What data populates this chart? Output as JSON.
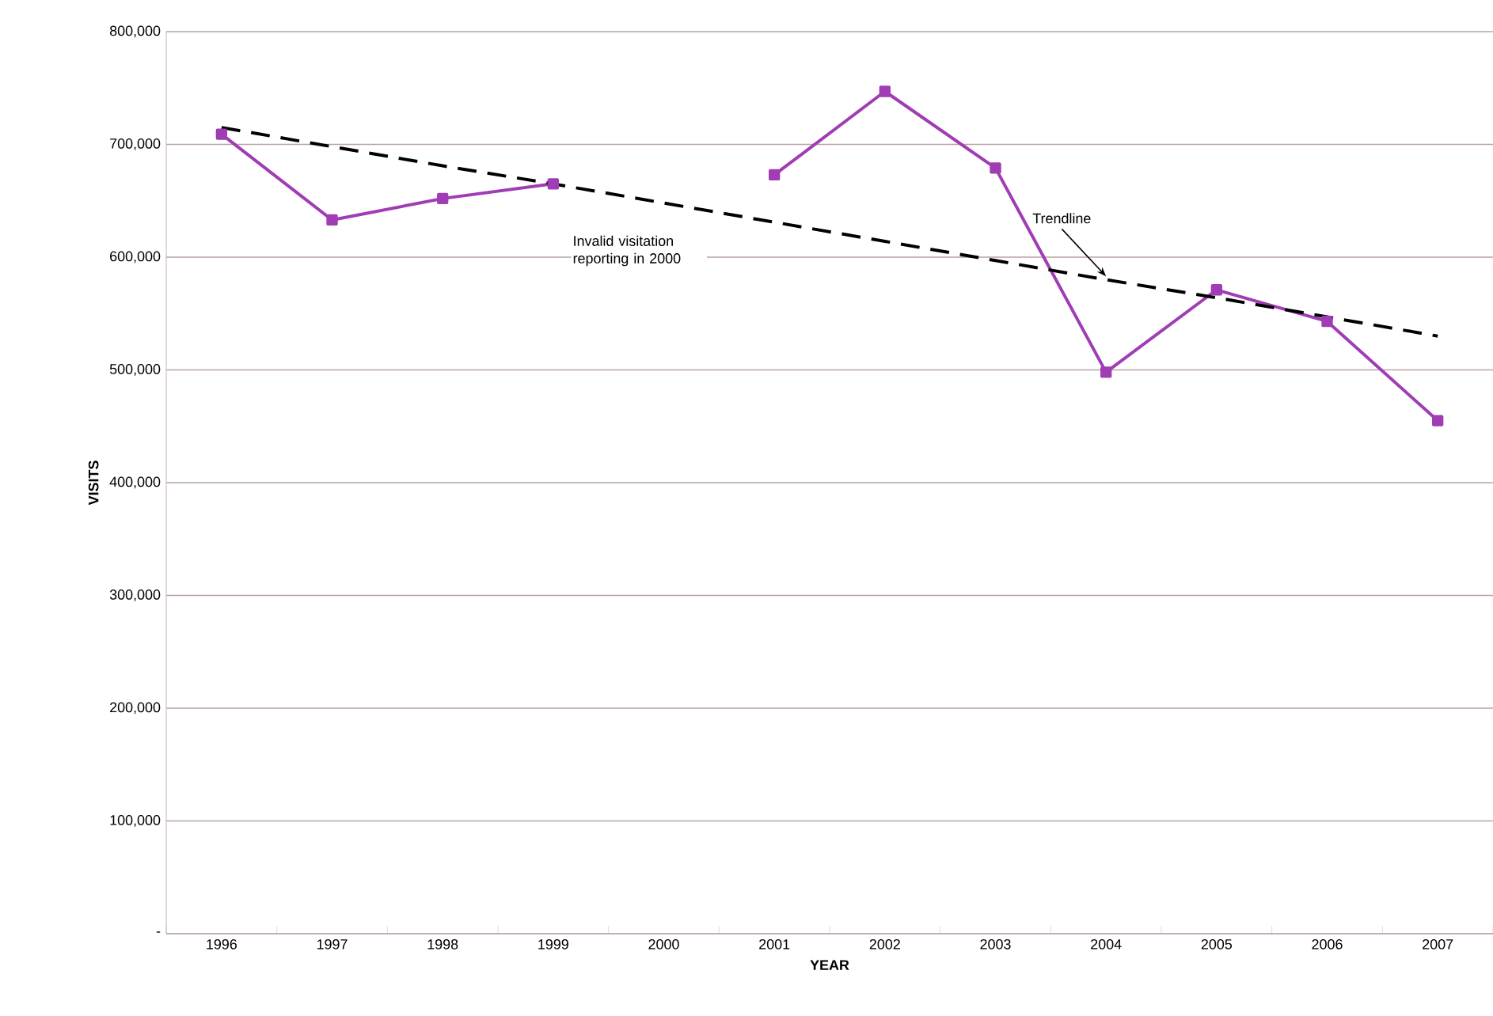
{
  "chart_data": {
    "type": "line",
    "xlabel": "YEAR",
    "ylabel": "VISITS",
    "categories": [
      "1996",
      "1997",
      "1998",
      "1999",
      "2000",
      "2001",
      "2002",
      "2003",
      "2004",
      "2005",
      "2006",
      "2007"
    ],
    "series": [
      {
        "color": "#a03cb4",
        "marker": "square",
        "line_style": "solid",
        "values": [
          709000,
          633000,
          652000,
          665000,
          null,
          673000,
          747000,
          679000,
          498000,
          571000,
          543000,
          455000
        ]
      },
      {
        "color": "#000000",
        "marker": "none",
        "line_style": "dashed",
        "values": [
          715000,
          698000,
          681000,
          665000,
          648000,
          631000,
          614000,
          597000,
          580000,
          564000,
          547000,
          530000
        ]
      }
    ],
    "ylim": [
      0,
      800000
    ],
    "yticks": [
      {
        "value": 0,
        "label": "-"
      },
      {
        "value": 100000,
        "label": "100,000"
      },
      {
        "value": 200000,
        "label": "200,000"
      },
      {
        "value": 300000,
        "label": "300,000"
      },
      {
        "value": 400000,
        "label": "400,000"
      },
      {
        "value": 500000,
        "label": "500,000"
      },
      {
        "value": 600000,
        "label": "600,000"
      },
      {
        "value": 700000,
        "label": "700,000"
      },
      {
        "value": 800000,
        "label": "800,000"
      }
    ],
    "grid": "y",
    "annotations": [
      "Invalid visitation reporting in 2000",
      {
        "text": "Trendline",
        "x": "2004",
        "y": 580000
      }
    ]
  }
}
